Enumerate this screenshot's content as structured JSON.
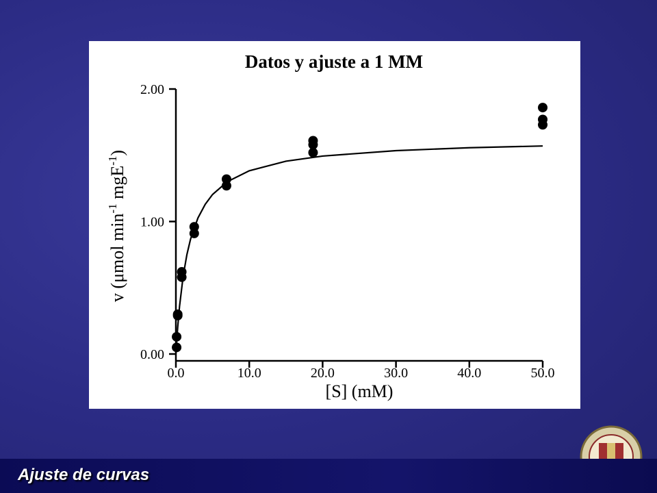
{
  "chart_data": {
    "type": "scatter",
    "title": "Datos y ajuste a 1 MM",
    "x_label": "[S] (mM)",
    "y_label": [
      "v (μmol min",
      "-1",
      " mgE",
      "-1",
      ")"
    ],
    "xlim": [
      0,
      50
    ],
    "ylim": [
      0,
      2
    ],
    "xticks": [
      {
        "value": 0,
        "label": "0.0"
      },
      {
        "value": 10,
        "label": "10.0"
      },
      {
        "value": 20,
        "label": "20.0"
      },
      {
        "value": 30,
        "label": "30.0"
      },
      {
        "value": 40,
        "label": "40.0"
      },
      {
        "value": 50,
        "label": "50.0"
      }
    ],
    "yticks": [
      {
        "value": 0,
        "label": "0.00"
      },
      {
        "value": 1,
        "label": "1.00"
      },
      {
        "value": 2,
        "label": "2.00"
      }
    ],
    "series": [
      {
        "type": "scatter",
        "color": "#000000",
        "x": [
          0.1,
          0.1,
          0.25,
          0.25,
          0.8,
          0.8,
          2.5,
          2.5,
          6.9,
          6.9,
          18.7,
          18.7,
          18.7,
          50,
          50,
          50
        ],
        "y": [
          0.05,
          0.13,
          0.3,
          0.29,
          0.62,
          0.58,
          0.96,
          0.91,
          1.32,
          1.27,
          1.61,
          1.58,
          1.52,
          1.86,
          1.77,
          1.73
        ]
      },
      {
        "type": "line",
        "color": "#000000",
        "x": [
          0,
          0.25,
          0.5,
          1,
          1.5,
          2,
          3,
          4,
          5,
          7,
          10,
          15,
          20,
          30,
          40,
          50
        ],
        "y": [
          0,
          0.203,
          0.361,
          0.591,
          0.75,
          0.867,
          1.026,
          1.13,
          1.204,
          1.3,
          1.383,
          1.455,
          1.494,
          1.535,
          1.557,
          1.57
        ]
      }
    ]
  },
  "footer": {
    "title": "Ajuste de curvas"
  }
}
